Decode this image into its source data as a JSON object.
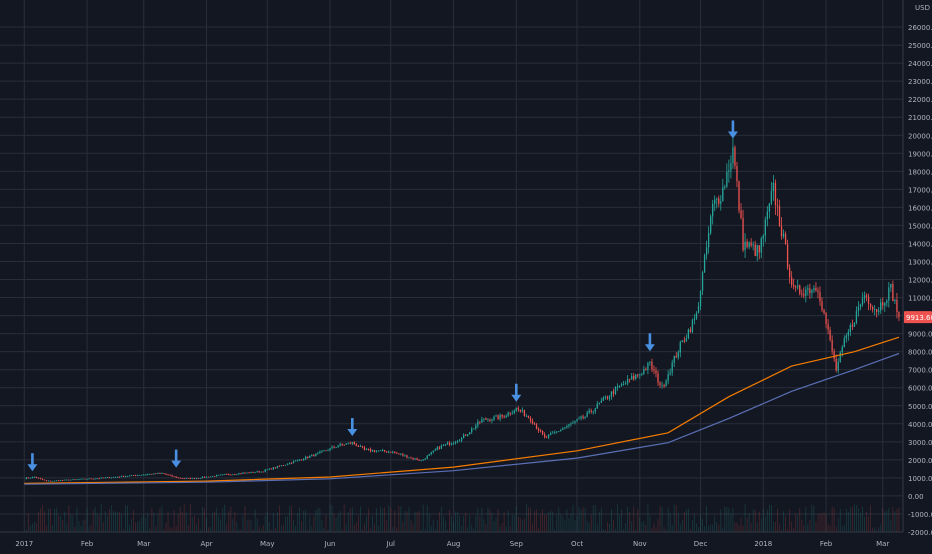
{
  "chart_data": {
    "type": "candlestick",
    "currency_label": "USD",
    "y_axis": {
      "ticks": [
        "-2000.00",
        "-1000.00",
        "0.00",
        "1000.00",
        "2000.00",
        "3000.00",
        "4000.00",
        "5000.00",
        "6000.00",
        "7000.00",
        "8000.00",
        "9000.00",
        "10000.00",
        "11000.00",
        "12000.00",
        "13000.00",
        "14000.00",
        "15000.00",
        "16000.00",
        "17000.00",
        "18000.00",
        "19000.00",
        "20000.00",
        "21000.00",
        "22000.00",
        "23000.00",
        "24000.00",
        "25000.00",
        "26000.00"
      ],
      "range": [
        -2000,
        27500
      ],
      "grid": true
    },
    "x_axis": {
      "ticks": [
        "2017",
        "Feb",
        "Mar",
        "Apr",
        "May",
        "Jun",
        "Jul",
        "Aug",
        "Sep",
        "Oct",
        "Nov",
        "Dec",
        "2018",
        "Feb",
        "Mar"
      ],
      "grid": true
    },
    "last_price_label": "9913.60",
    "price_series": [
      {
        "date": "2017-01-01",
        "close": 970
      },
      {
        "date": "2017-01-06",
        "close": 1050
      },
      {
        "date": "2017-01-12",
        "close": 820
      },
      {
        "date": "2017-01-25",
        "close": 900
      },
      {
        "date": "2017-02-10",
        "close": 1000
      },
      {
        "date": "2017-02-28",
        "close": 1180
      },
      {
        "date": "2017-03-10",
        "close": 1250
      },
      {
        "date": "2017-03-18",
        "close": 1000
      },
      {
        "date": "2017-03-25",
        "close": 960
      },
      {
        "date": "2017-04-10",
        "close": 1180
      },
      {
        "date": "2017-04-28",
        "close": 1350
      },
      {
        "date": "2017-05-10",
        "close": 1750
      },
      {
        "date": "2017-05-25",
        "close": 2300
      },
      {
        "date": "2017-06-05",
        "close": 2800
      },
      {
        "date": "2017-06-12",
        "close": 2950
      },
      {
        "date": "2017-06-18",
        "close": 2550
      },
      {
        "date": "2017-07-01",
        "close": 2450
      },
      {
        "date": "2017-07-16",
        "close": 1950
      },
      {
        "date": "2017-07-25",
        "close": 2700
      },
      {
        "date": "2017-08-05",
        "close": 3200
      },
      {
        "date": "2017-08-15",
        "close": 4200
      },
      {
        "date": "2017-08-25",
        "close": 4400
      },
      {
        "date": "2017-09-01",
        "close": 4850
      },
      {
        "date": "2017-09-08",
        "close": 4300
      },
      {
        "date": "2017-09-15",
        "close": 3200
      },
      {
        "date": "2017-09-25",
        "close": 3800
      },
      {
        "date": "2017-10-05",
        "close": 4400
      },
      {
        "date": "2017-10-20",
        "close": 5900
      },
      {
        "date": "2017-11-01",
        "close": 6800
      },
      {
        "date": "2017-11-06",
        "close": 7300
      },
      {
        "date": "2017-11-12",
        "close": 6000
      },
      {
        "date": "2017-11-20",
        "close": 8100
      },
      {
        "date": "2017-11-29",
        "close": 10000
      },
      {
        "date": "2017-12-07",
        "close": 16000
      },
      {
        "date": "2017-12-12",
        "close": 17000
      },
      {
        "date": "2017-12-17",
        "close": 19200
      },
      {
        "date": "2017-12-22",
        "close": 14000
      },
      {
        "date": "2017-12-30",
        "close": 13500
      },
      {
        "date": "2018-01-06",
        "close": 17000
      },
      {
        "date": "2018-01-16",
        "close": 11300
      },
      {
        "date": "2018-01-28",
        "close": 11600
      },
      {
        "date": "2018-02-06",
        "close": 7000
      },
      {
        "date": "2018-02-10",
        "close": 8500
      },
      {
        "date": "2018-02-20",
        "close": 11200
      },
      {
        "date": "2018-02-26",
        "close": 10300
      },
      {
        "date": "2018-03-05",
        "close": 11500
      },
      {
        "date": "2018-03-09",
        "close": 9913.6
      }
    ],
    "moving_averages": [
      {
        "color": "#f57c00",
        "points": [
          {
            "date": "2017-01-01",
            "value": 700
          },
          {
            "date": "2017-04-01",
            "value": 820
          },
          {
            "date": "2017-06-01",
            "value": 1050
          },
          {
            "date": "2017-08-01",
            "value": 1600
          },
          {
            "date": "2017-10-01",
            "value": 2500
          },
          {
            "date": "2017-11-15",
            "value": 3500
          },
          {
            "date": "2017-12-15",
            "value": 5500
          },
          {
            "date": "2018-01-15",
            "value": 7200
          },
          {
            "date": "2018-02-15",
            "value": 8000
          },
          {
            "date": "2018-03-09",
            "value": 8800
          }
        ]
      },
      {
        "color": "#5b6fb5",
        "points": [
          {
            "date": "2017-01-01",
            "value": 650
          },
          {
            "date": "2017-04-01",
            "value": 760
          },
          {
            "date": "2017-06-01",
            "value": 950
          },
          {
            "date": "2017-08-01",
            "value": 1400
          },
          {
            "date": "2017-10-01",
            "value": 2100
          },
          {
            "date": "2017-11-15",
            "value": 2950
          },
          {
            "date": "2017-12-15",
            "value": 4300
          },
          {
            "date": "2018-01-15",
            "value": 5800
          },
          {
            "date": "2018-02-15",
            "value": 7000
          },
          {
            "date": "2018-03-09",
            "value": 7900
          }
        ]
      }
    ],
    "annotation_arrows": [
      {
        "date": "2017-01-05",
        "price": 1150
      },
      {
        "date": "2017-03-17",
        "price": 1350
      },
      {
        "date": "2017-06-12",
        "price": 3100
      },
      {
        "date": "2017-09-01",
        "price": 5000
      },
      {
        "date": "2017-11-06",
        "price": 7800
      },
      {
        "date": "2017-12-17",
        "price": 19600
      }
    ],
    "colors": {
      "background": "#131722",
      "grid": "#2a2e39",
      "up": "#26a69a",
      "down": "#ef5350",
      "axis_text": "#b2b5be",
      "arrow": "#4a90e2",
      "last_price_bg": "#ef5350"
    }
  }
}
